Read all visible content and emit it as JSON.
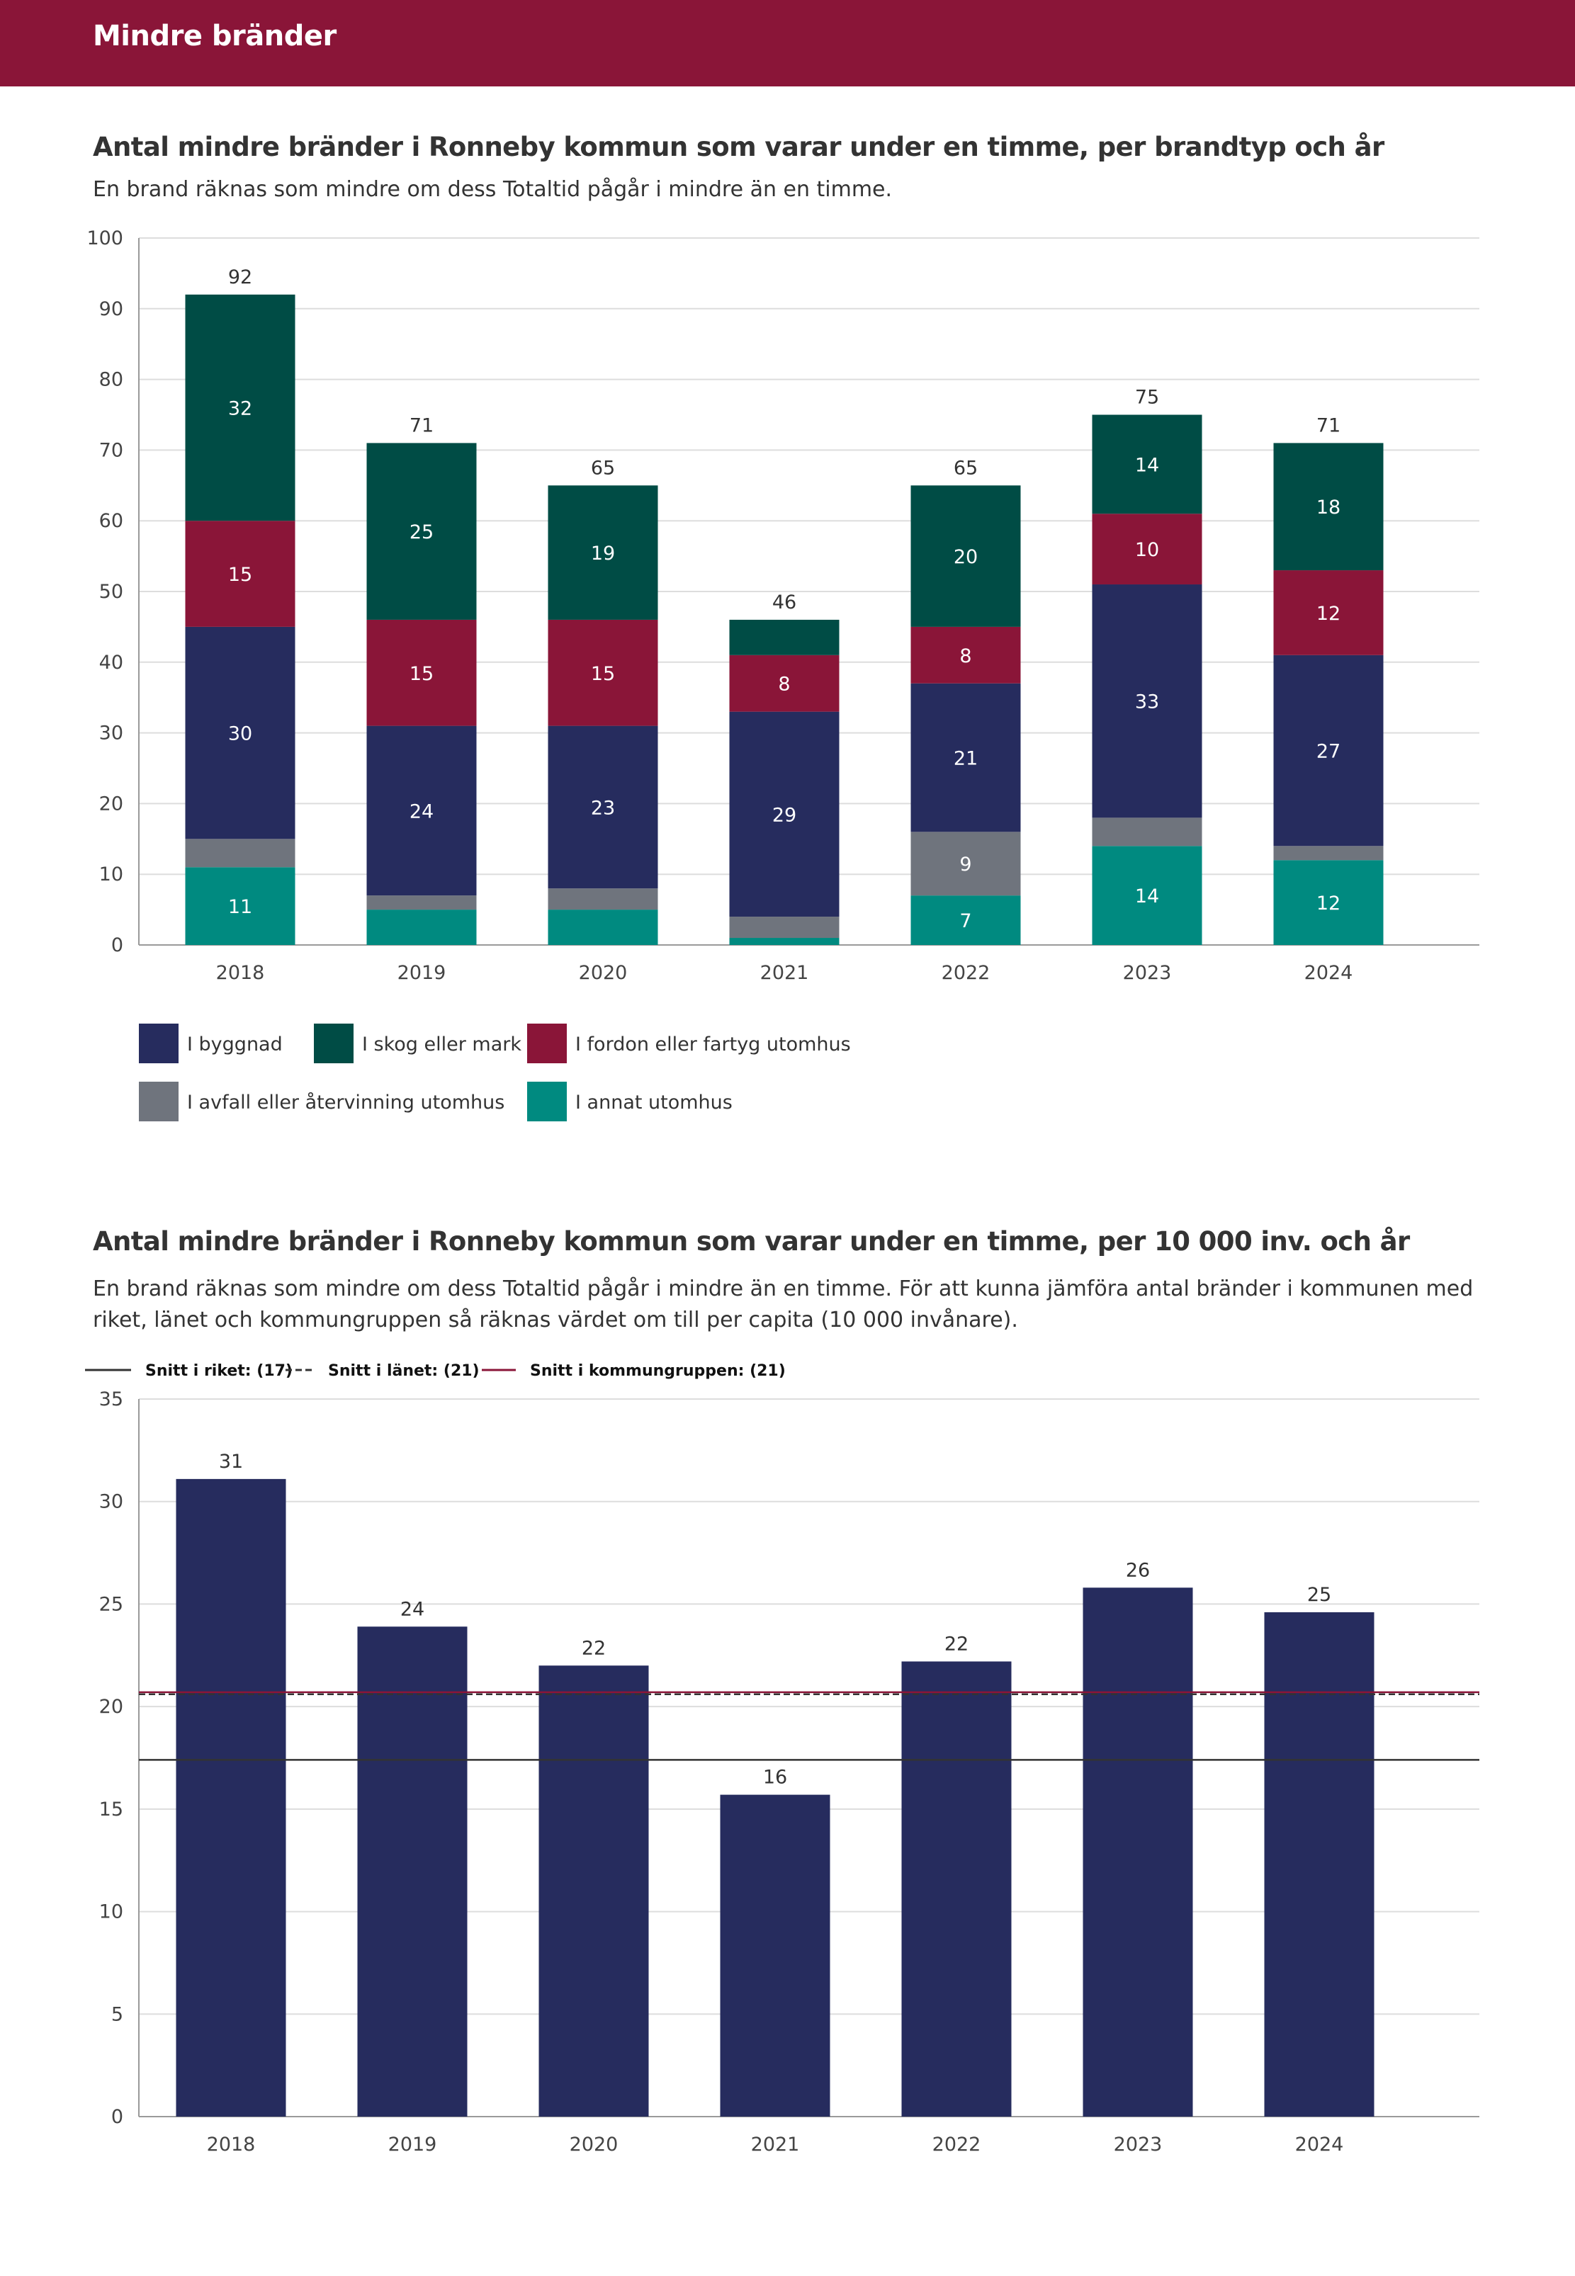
{
  "header": {
    "title": "Mindre bränder"
  },
  "colors": {
    "header": "#8a1538",
    "byggnad": "#262c5e",
    "skog": "#004c45",
    "fordon": "#8a1538",
    "avfall": "#6f747d",
    "annat": "#008a80",
    "bar": "#262c5e",
    "riket": "#333333",
    "lanet": "#333333",
    "kommungruppen": "#8a1538"
  },
  "chart1": {
    "title": "Antal mindre bränder i Ronneby kommun som varar under en timme, per brandtyp och år",
    "subtitle": "En brand räknas som mindre om dess Totaltid pågår i mindre än en timme."
  },
  "chart2": {
    "title": "Antal mindre bränder i Ronneby kommun som varar under en timme, per 10 000 inv. och år",
    "subtitle": "En brand räknas som mindre om dess Totaltid pågår i mindre än en timme. För att kunna jämföra antal bränder i kommunen med riket, länet och kommungruppen så räknas värdet om till per capita (10 000 invånare)."
  },
  "chart_data": [
    {
      "type": "bar",
      "stacked": true,
      "categories": [
        "2018",
        "2019",
        "2020",
        "2021",
        "2022",
        "2023",
        "2024"
      ],
      "totals": [
        92,
        71,
        65,
        46,
        65,
        75,
        71
      ],
      "series": [
        {
          "name": "I annat utomhus",
          "color": "#008a80",
          "values": [
            11,
            5,
            5,
            1,
            7,
            14,
            12
          ],
          "labels": [
            "11",
            "",
            "",
            "",
            "7",
            "14",
            "12"
          ]
        },
        {
          "name": "I avfall eller återvinning utomhus",
          "color": "#6f747d",
          "values": [
            4,
            2,
            3,
            3,
            9,
            4,
            2
          ],
          "labels": [
            "",
            "",
            "",
            "",
            "9",
            "",
            ""
          ]
        },
        {
          "name": "I byggnad",
          "color": "#262c5e",
          "values": [
            30,
            24,
            23,
            29,
            21,
            33,
            27
          ],
          "labels": [
            "30",
            "24",
            "23",
            "29",
            "21",
            "33",
            "27"
          ]
        },
        {
          "name": "I fordon eller fartyg utomhus",
          "color": "#8a1538",
          "values": [
            15,
            15,
            15,
            8,
            8,
            10,
            12
          ],
          "labels": [
            "15",
            "15",
            "15",
            "8",
            "8",
            "10",
            "12"
          ]
        },
        {
          "name": "I skog eller mark",
          "color": "#004c45",
          "values": [
            32,
            25,
            19,
            5,
            20,
            14,
            18
          ],
          "labels": [
            "32",
            "25",
            "19",
            "",
            "20",
            "14",
            "18"
          ]
        }
      ],
      "yticks": [
        "0",
        "10",
        "20",
        "30",
        "40",
        "50",
        "60",
        "70",
        "80",
        "90",
        "100"
      ],
      "ylim": [
        0,
        100
      ],
      "grid": true,
      "legend": [
        {
          "name": "I byggnad",
          "color": "#262c5e"
        },
        {
          "name": "I skog eller mark",
          "color": "#004c45"
        },
        {
          "name": "I fordon eller fartyg utomhus",
          "color": "#8a1538"
        },
        {
          "name": "I avfall eller återvinning utomhus",
          "color": "#6f747d"
        },
        {
          "name": "I annat utomhus",
          "color": "#008a80"
        }
      ]
    },
    {
      "type": "bar",
      "categories": [
        "2018",
        "2019",
        "2020",
        "2021",
        "2022",
        "2023",
        "2024"
      ],
      "values": [
        31.1,
        23.9,
        22.0,
        15.7,
        22.2,
        25.8,
        24.6
      ],
      "labels": [
        "31",
        "24",
        "22",
        "16",
        "22",
        "26",
        "25"
      ],
      "yticks": [
        "0",
        "5",
        "10",
        "15",
        "20",
        "25",
        "30",
        "35"
      ],
      "ylim": [
        0,
        35
      ],
      "grid": true,
      "reference_lines": [
        {
          "name": "Snitt i riket: (17)",
          "value": 17.4,
          "style": "solid",
          "color": "#333333"
        },
        {
          "name": "Snitt i länet: (21)",
          "value": 20.6,
          "style": "dashed",
          "color": "#333333"
        },
        {
          "name": "Snitt i kommungruppen: (21)",
          "value": 20.7,
          "style": "solid",
          "color": "#8a1538"
        }
      ]
    }
  ]
}
